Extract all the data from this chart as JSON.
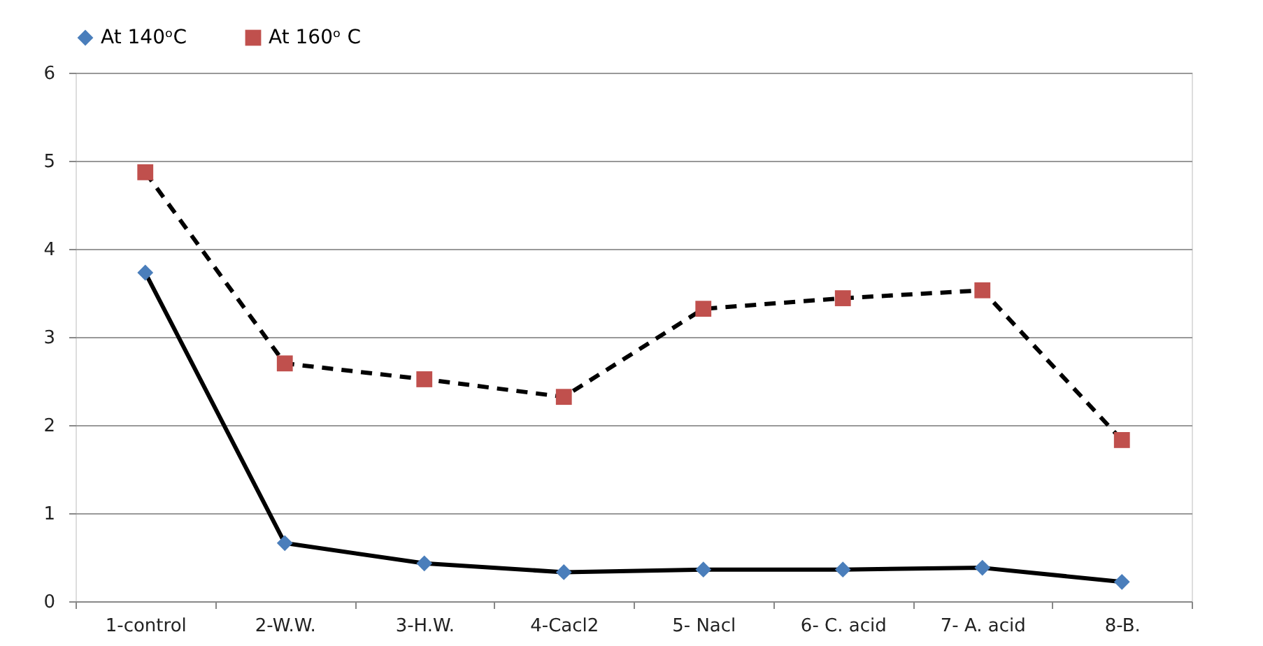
{
  "chart_data": {
    "type": "line",
    "categories": [
      "1-control",
      "2-W.W.",
      "3-H.W.",
      "4-Cacl2",
      "5- Nacl",
      "6- C. acid",
      "7- A. acid",
      "8-B."
    ],
    "series": [
      {
        "name": "At 140ᵒC",
        "color": "#4a7ebb",
        "marker": "diamond",
        "line_style": "solid",
        "values": [
          3.73,
          0.66,
          0.43,
          0.33,
          0.36,
          0.36,
          0.38,
          0.22
        ]
      },
      {
        "name": "At 160ᵒ C",
        "color": "#c0504d",
        "marker": "square",
        "line_style": "dashed",
        "values": [
          4.87,
          2.7,
          2.52,
          2.32,
          3.32,
          3.44,
          3.53,
          1.83
        ]
      }
    ],
    "ylim": [
      0,
      6
    ],
    "yticks": [
      0,
      1,
      2,
      3,
      4,
      5,
      6
    ],
    "grid": "y",
    "legend": "top"
  }
}
